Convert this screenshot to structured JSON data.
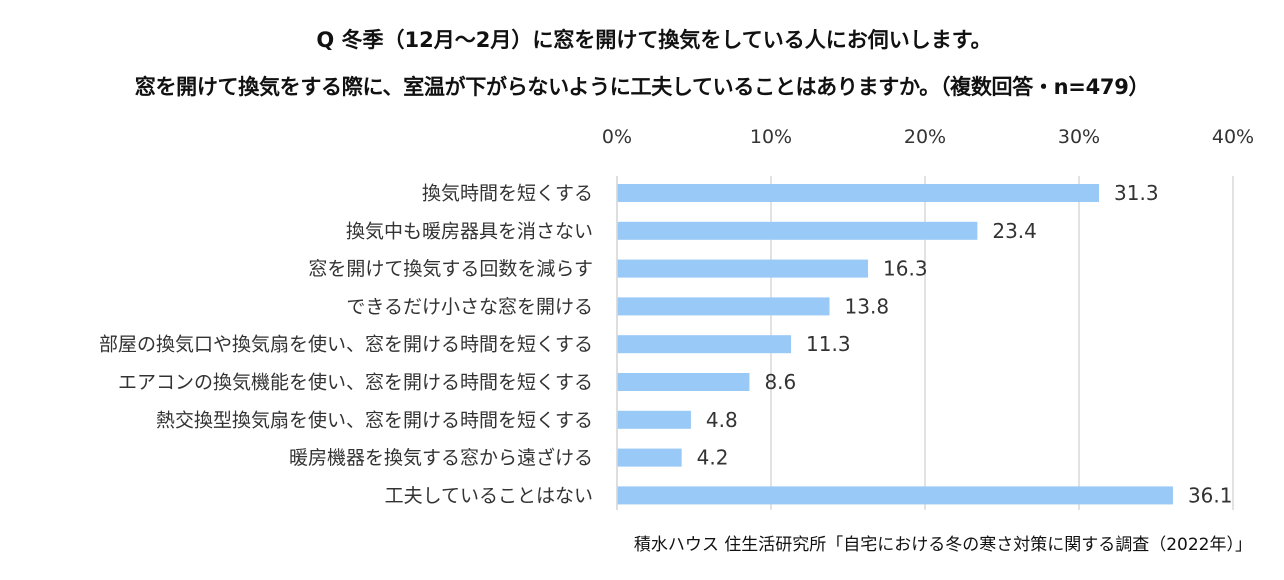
{
  "title_line1": "Q 冬季（12月～2月）に窓を開けて換気をしている人にお伺いします。",
  "title_line2": "窓を開けて換気をする際に、室温が下がらないように工夫していることはありますか。（複数回答・n=479）",
  "source": "積水ハウス 住生活研究所「自宅における冬の寒さ対策に関する調査（2022年）」",
  "colors": {
    "bar": "#99c9f6",
    "grid": "#d9d9d9",
    "text": "#333333"
  },
  "chart_data": {
    "type": "bar",
    "orientation": "horizontal",
    "categories": [
      "換気時間を短くする",
      "換気中も暖房器具を消さない",
      "窓を開けて換気する回数を減らす",
      "できるだけ小さな窓を開ける",
      "部屋の換気口や換気扇を使い、窓を開ける時間を短くする",
      "エアコンの換気機能を使い、窓を開ける時間を短くする",
      "熱交換型換気扇を使い、窓を開ける時間を短くする",
      "暖房機器を換気する窓から遠ざける",
      "工夫していることはない"
    ],
    "values": [
      31.3,
      23.4,
      16.3,
      13.8,
      11.3,
      8.6,
      4.8,
      4.2,
      36.1
    ],
    "value_labels": [
      "31.3",
      "23.4",
      "16.3",
      "13.8",
      "11.3",
      "8.6",
      "4.8",
      "4.2",
      "36.1"
    ],
    "xlim": [
      0,
      40
    ],
    "xticks": [
      0,
      10,
      20,
      30,
      40
    ],
    "xtick_labels": [
      "0%",
      "10%",
      "20%",
      "30%",
      "40%"
    ],
    "axis_position": "top",
    "grid": true,
    "legend": "none"
  }
}
